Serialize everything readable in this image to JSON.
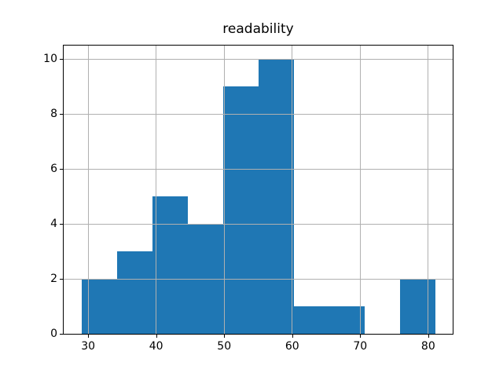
{
  "figure": {
    "background": "#ffffff",
    "text_color": "#000000"
  },
  "chart_data": {
    "type": "bar",
    "chart_kind": "histogram",
    "title": "readability",
    "bin_edges": [
      29.0,
      34.2,
      39.4,
      44.6,
      49.8,
      55.0,
      60.2,
      65.4,
      70.6,
      75.8,
      81.0
    ],
    "counts": [
      2,
      3,
      5,
      4,
      9,
      10,
      1,
      1,
      0,
      2
    ],
    "xticks": [
      30,
      40,
      50,
      60,
      70,
      80
    ],
    "yticks": [
      0,
      2,
      4,
      6,
      8,
      10
    ],
    "xlim": [
      26.4,
      83.6
    ],
    "ylim": [
      0,
      10.5
    ],
    "xlabel": "",
    "ylabel": "",
    "grid": true,
    "legend": false,
    "bar_color": "#1f77b4",
    "grid_color": "#b0b0b0",
    "spine_color": "#000000",
    "tick_color": "#000000"
  }
}
